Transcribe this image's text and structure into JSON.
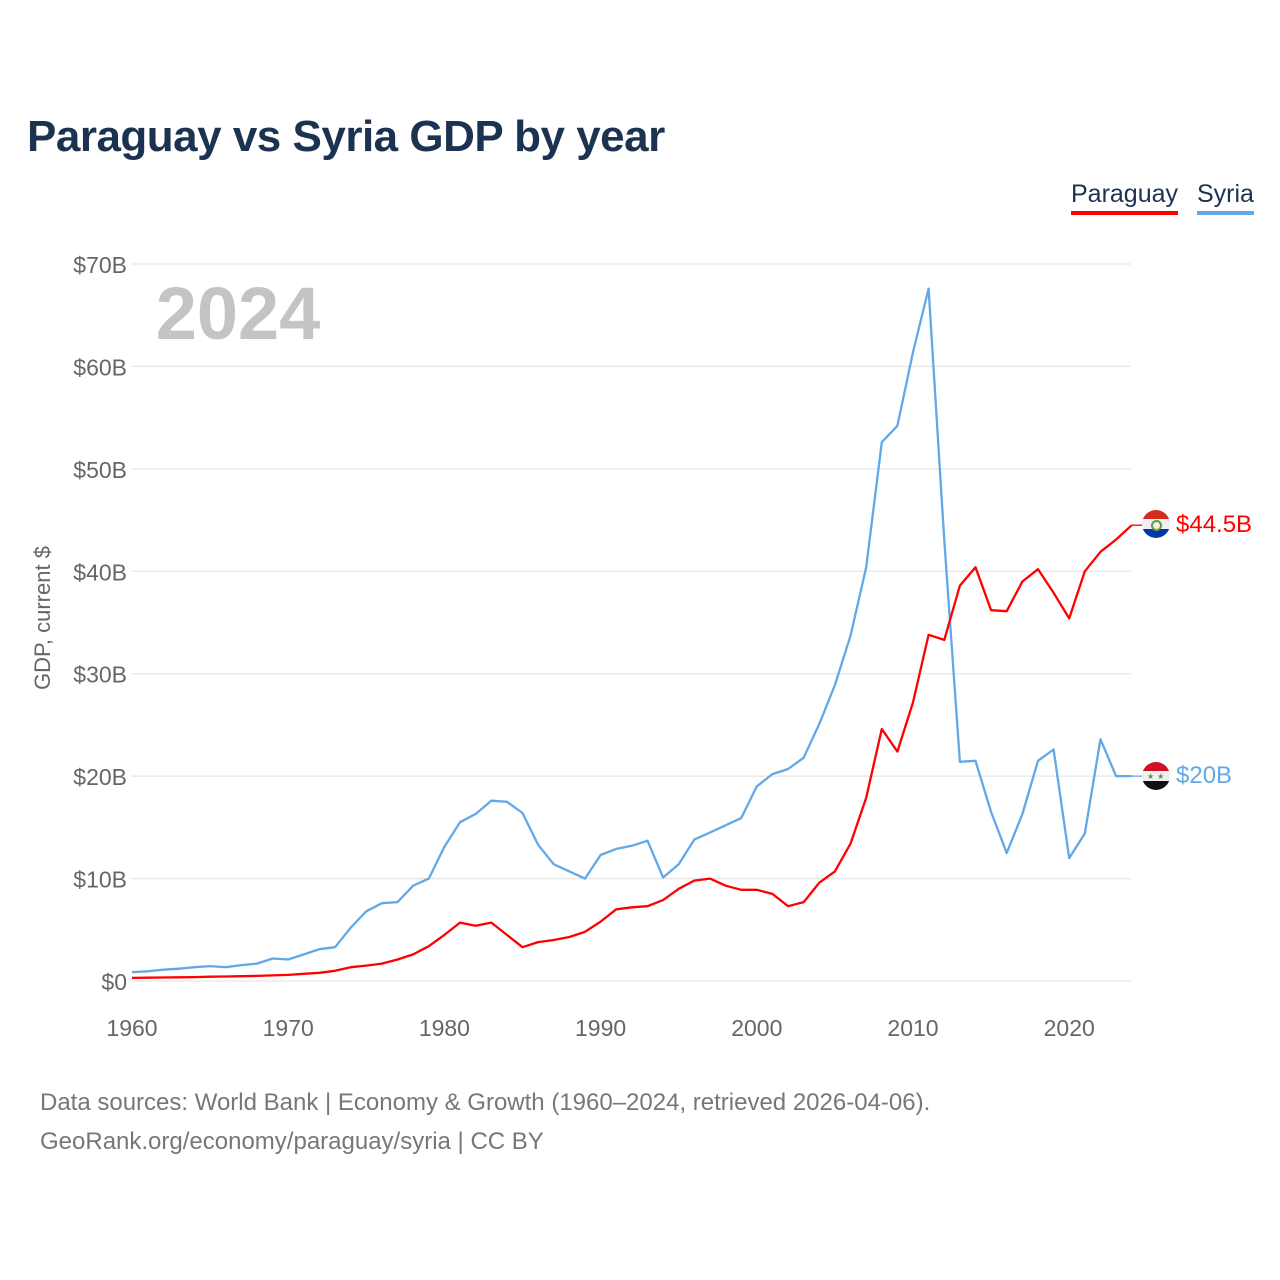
{
  "title": "Paraguay vs Syria GDP by year",
  "legend": [
    "Paraguay",
    "Syria"
  ],
  "year_label": "2024",
  "end_labels": {
    "paraguay": "$44.5B",
    "syria": "$20B"
  },
  "footer": {
    "line1": "Data sources: World Bank | Economy & Growth (1960–2024, retrieved 2026-04-06).",
    "line2": "GeoRank.org/economy/paraguay/syria | CC BY"
  },
  "colors": {
    "paraguay": "#ff0000",
    "syria": "#62a8e8"
  },
  "chart_data": {
    "type": "line",
    "title": "Paraguay vs Syria GDP by year",
    "xlabel": "",
    "ylabel": "GDP, current $",
    "ylim": [
      0,
      70
    ],
    "xlim": [
      1960,
      2024
    ],
    "yticks": [
      0,
      10,
      20,
      30,
      40,
      50,
      60,
      70
    ],
    "ytick_labels": [
      "$0",
      "$10B",
      "$20B",
      "$30B",
      "$40B",
      "$50B",
      "$60B",
      "$70B"
    ],
    "xticks": [
      1960,
      1970,
      1980,
      1990,
      2000,
      2010,
      2020
    ],
    "xtick_labels": [
      "1960",
      "1970",
      "1980",
      "1990",
      "2000",
      "2010",
      "2020"
    ],
    "grid": true,
    "legend_position": "top-right",
    "x_start": 1960,
    "series": [
      {
        "name": "Paraguay",
        "unit": "billion USD",
        "values": [
          0.3,
          0.32,
          0.34,
          0.36,
          0.38,
          0.42,
          0.44,
          0.47,
          0.5,
          0.55,
          0.6,
          0.7,
          0.8,
          1.0,
          1.35,
          1.5,
          1.7,
          2.1,
          2.6,
          3.4,
          4.5,
          5.7,
          5.4,
          5.7,
          4.5,
          3.3,
          3.8,
          4.0,
          4.3,
          4.8,
          5.8,
          7.0,
          7.2,
          7.3,
          7.9,
          9.0,
          9.8,
          10.0,
          9.3,
          8.9,
          8.9,
          8.5,
          7.3,
          7.7,
          9.6,
          10.7,
          13.4,
          17.9,
          24.6,
          22.4,
          27.2,
          33.8,
          33.3,
          38.6,
          40.4,
          36.2,
          36.1,
          39.0,
          40.2,
          37.9,
          35.4,
          40.0,
          41.9,
          43.1,
          44.5
        ]
      },
      {
        "name": "Syria",
        "unit": "billion USD",
        "values": [
          0.86,
          0.95,
          1.1,
          1.2,
          1.35,
          1.45,
          1.35,
          1.55,
          1.7,
          2.2,
          2.1,
          2.6,
          3.1,
          3.3,
          5.2,
          6.8,
          7.6,
          7.7,
          9.3,
          10.0,
          13.1,
          15.5,
          16.3,
          17.6,
          17.5,
          16.4,
          13.3,
          11.4,
          10.7,
          10.0,
          12.3,
          12.9,
          13.2,
          13.7,
          10.1,
          11.4,
          13.8,
          14.5,
          15.2,
          15.9,
          19.0,
          20.2,
          20.7,
          21.8,
          25.1,
          28.9,
          33.7,
          40.4,
          52.6,
          54.2,
          61.4,
          67.6,
          43.0,
          21.4,
          21.5,
          16.5,
          12.5,
          16.3,
          21.5,
          22.6,
          12.0,
          14.4,
          23.6,
          20.0,
          20.0
        ]
      }
    ]
  }
}
